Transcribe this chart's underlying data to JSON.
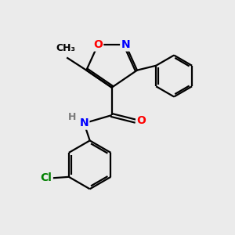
{
  "bg_color": "#ebebeb",
  "bond_color": "#000000",
  "bond_width": 1.6,
  "atom_colors": {
    "O": "#ff0000",
    "N": "#0000ff",
    "Cl": "#008000",
    "C": "#000000",
    "H": "#7a7a7a"
  },
  "font_size": 10,
  "figsize": [
    3.0,
    3.0
  ],
  "dpi": 100
}
